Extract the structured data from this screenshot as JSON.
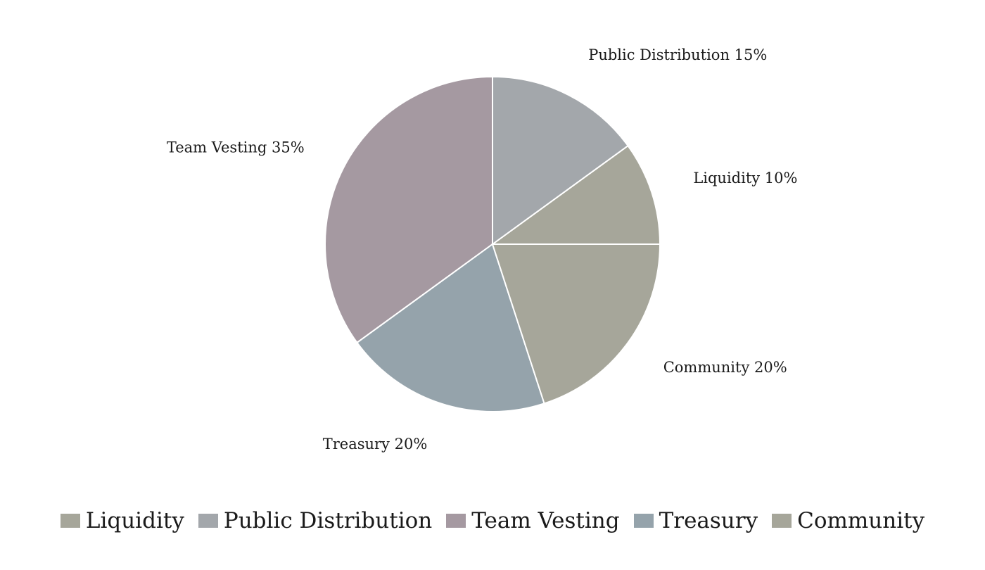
{
  "chart_data": {
    "type": "pie",
    "title": "",
    "legend_position": "bottom",
    "slices": [
      {
        "name": "Liquidity",
        "value": 10,
        "label": "Liquidity 10%",
        "color": "#a6a69a"
      },
      {
        "name": "Public Distribution",
        "value": 15,
        "label": "Public Distribution 15%",
        "color": "#a3a7ab"
      },
      {
        "name": "Team Vesting",
        "value": 35,
        "label": "Team Vesting 35%",
        "color": "#a599a1"
      },
      {
        "name": "Treasury",
        "value": 20,
        "label": "Treasury 20%",
        "color": "#95a3ab"
      },
      {
        "name": "Community",
        "value": 20,
        "label": "Community 20%",
        "color": "#a6a69a"
      }
    ]
  }
}
